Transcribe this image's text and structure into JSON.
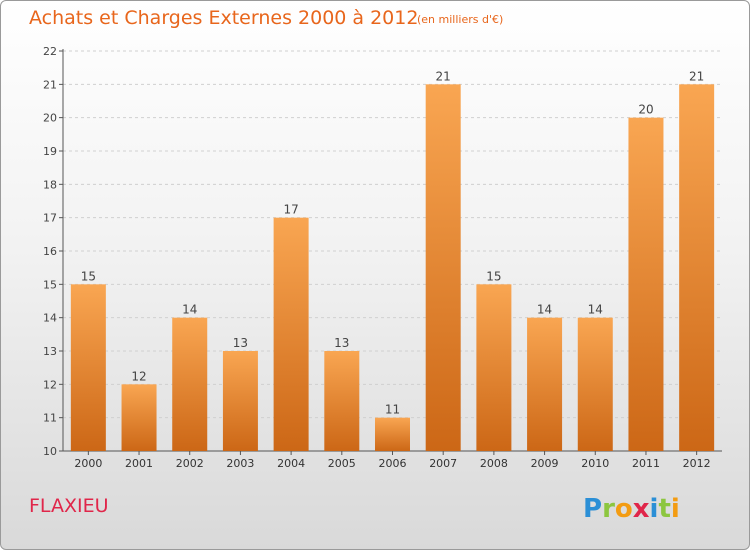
{
  "header": {
    "title": "Achats et Charges Externes 2000 à 2012",
    "subtitle": "(en milliers d'€)"
  },
  "footer": {
    "commune": "FLAXIEU",
    "logo_text": "Proxiti"
  },
  "colors": {
    "title": "#e8661c",
    "commune": "#e0264a",
    "bar_light": "#f7a24e",
    "bar_dark": "#cf6a17"
  },
  "chart_data": {
    "type": "bar",
    "categories": [
      "2000",
      "2001",
      "2002",
      "2003",
      "2004",
      "2005",
      "2006",
      "2007",
      "2008",
      "2009",
      "2010",
      "2011",
      "2012"
    ],
    "values": [
      15,
      12,
      14,
      13,
      17,
      13,
      11,
      21,
      15,
      14,
      14,
      20,
      21
    ],
    "data_labels": [
      "15",
      "12",
      "14",
      "13",
      "17",
      "13",
      "11",
      "21",
      "15",
      "14",
      "14",
      "20",
      "21"
    ],
    "yticks": [
      "10",
      "11",
      "12",
      "13",
      "14",
      "15",
      "16",
      "17",
      "18",
      "19",
      "20",
      "21",
      "22"
    ],
    "ylim": [
      10,
      22
    ],
    "grid": true,
    "xlabel": "",
    "ylabel": ""
  }
}
